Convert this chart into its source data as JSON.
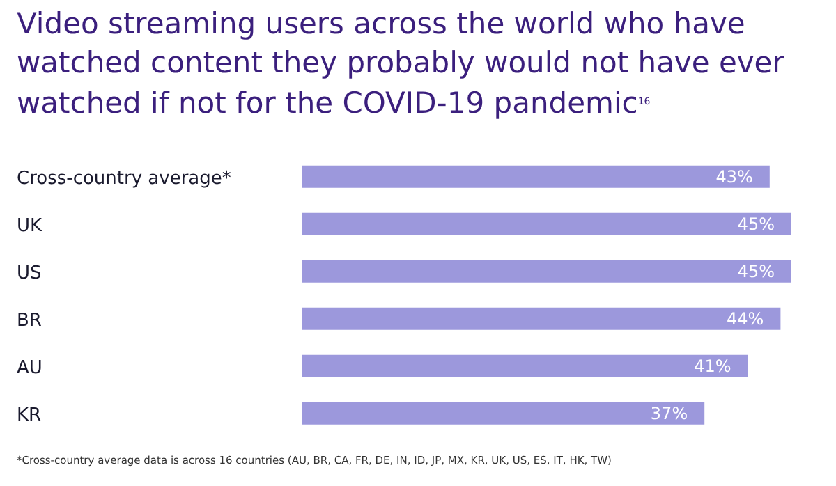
{
  "chart_data": {
    "type": "bar",
    "orientation": "horizontal",
    "title": "Video streaming users across the world who have watched content they probably would not have ever watched if not for the COVID-19 pandemic$^{16}$",
    "categories": [
      "Cross-country average*",
      "UK",
      "US",
      "BR",
      "AU",
      "KR"
    ],
    "values": [
      43,
      45,
      45,
      44,
      41,
      37
    ],
    "color": "#9c98dc",
    "data_labels": true,
    "value_labels": [
      "43%",
      "45%",
      "45%",
      "44%",
      "41%",
      "37%"
    ],
    "grid": false,
    "legend": false,
    "annotations": [
      "*Cross-country average data is across 16 countries (AU, BR, CA, FR, DE, IN, ID, JP, MX, KR, UK, US, ES, IT, HK, TW)"
    ]
  }
}
